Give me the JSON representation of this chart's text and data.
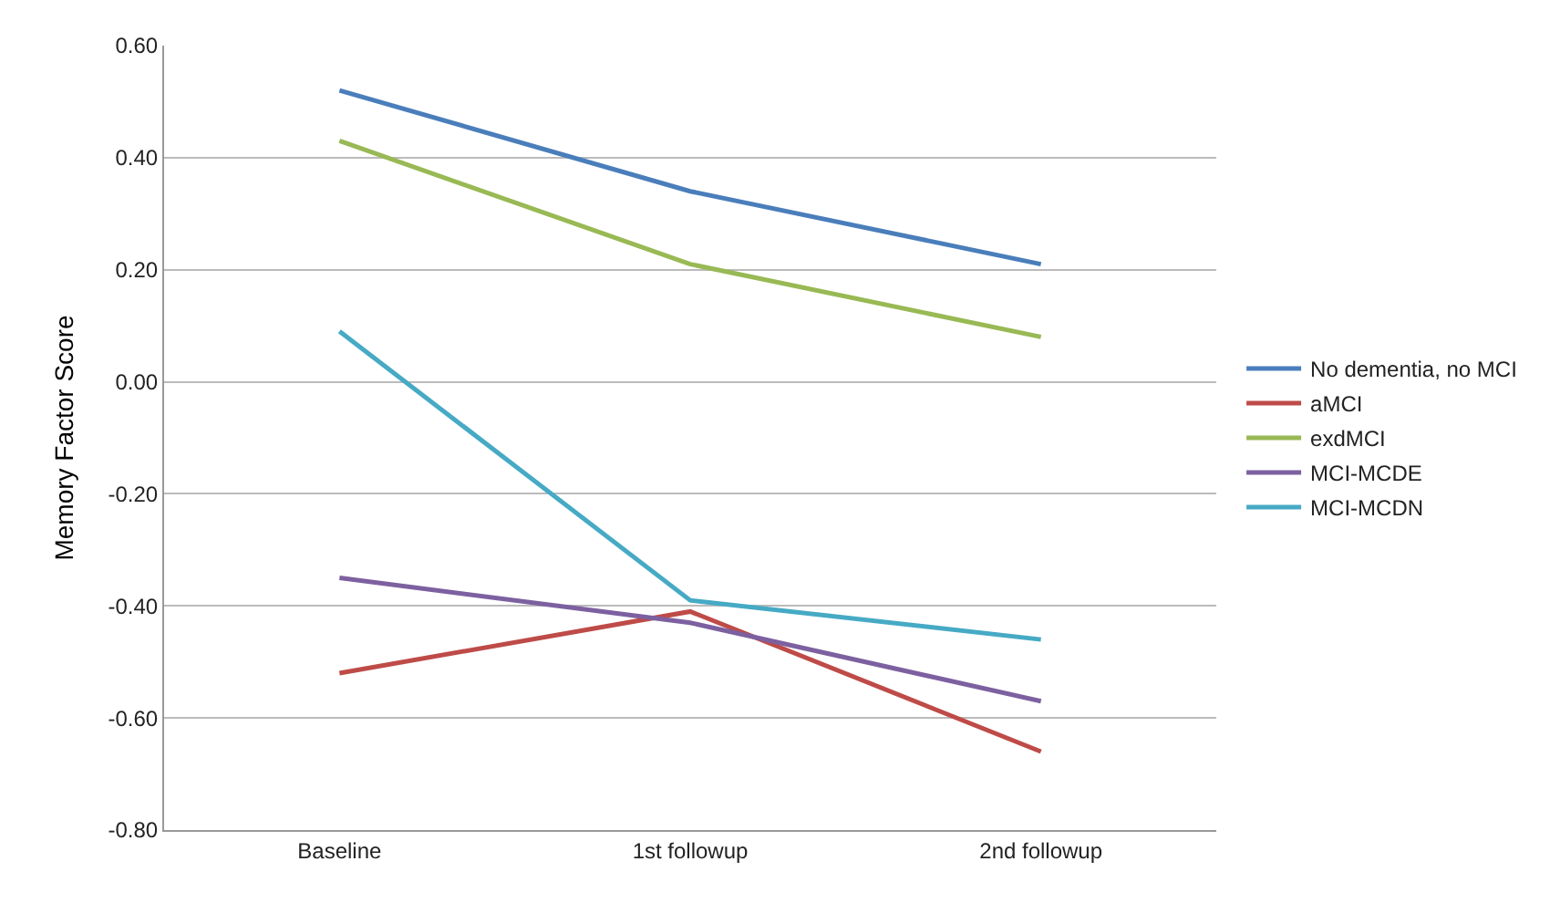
{
  "chart_data": {
    "type": "line",
    "ylabel": "Memory Factor Score",
    "categories": [
      "Baseline",
      "1st followup",
      "2nd followup"
    ],
    "series": [
      {
        "name": "No dementia, no MCI",
        "color": "#4a7ebb",
        "values": [
          0.52,
          0.34,
          0.21
        ]
      },
      {
        "name": "aMCI",
        "color": "#be4b48",
        "values": [
          -0.52,
          -0.41,
          -0.66
        ]
      },
      {
        "name": "exdMCI",
        "color": "#98b954",
        "values": [
          0.43,
          0.21,
          0.08
        ]
      },
      {
        "name": "MCI-MCDE",
        "color": "#7d60a0",
        "values": [
          -0.35,
          -0.43,
          -0.57
        ]
      },
      {
        "name": "MCI-MCDN",
        "color": "#46aac5",
        "values": [
          0.09,
          -0.39,
          -0.46
        ]
      }
    ],
    "ylim": [
      -0.8,
      0.6
    ],
    "yticks": [
      {
        "value": -0.8,
        "label": "-0.80"
      },
      {
        "value": -0.6,
        "label": "-0.60"
      },
      {
        "value": -0.4,
        "label": "-0.40"
      },
      {
        "value": -0.2,
        "label": "-0.20"
      },
      {
        "value": 0,
        "label": "0.00"
      },
      {
        "value": 0.2,
        "label": "0.20"
      },
      {
        "value": 0.4,
        "label": "0.40"
      },
      {
        "value": 0.6,
        "label": "0.60"
      }
    ],
    "grid": "y",
    "legend": "right",
    "marker": "none",
    "line_style": "solid"
  }
}
